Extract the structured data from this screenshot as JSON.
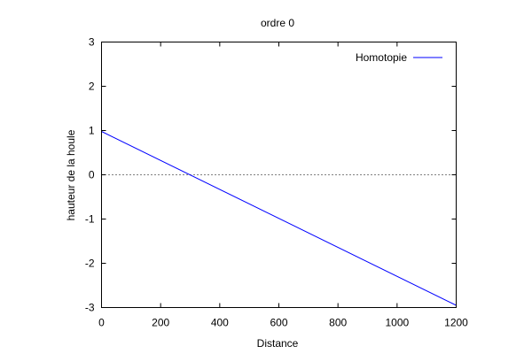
{
  "chart_data": {
    "type": "line",
    "title": "ordre 0",
    "xlabel": "Distance",
    "ylabel": "hauteur de la houle",
    "xlim": [
      0,
      1200
    ],
    "ylim": [
      -3,
      3
    ],
    "xticks": [
      0,
      200,
      400,
      600,
      800,
      1000,
      1200
    ],
    "yticks": [
      -3,
      -2,
      -1,
      0,
      1,
      2,
      3
    ],
    "grid": false,
    "zero_line": {
      "y": 0,
      "style": "dotted",
      "color": "#000000"
    },
    "legend": {
      "position": "top-right"
    },
    "series": [
      {
        "name": "Homotopie",
        "color": "#0000ff",
        "x": [
          0,
          1200
        ],
        "y": [
          0.98,
          -2.95
        ]
      }
    ]
  }
}
